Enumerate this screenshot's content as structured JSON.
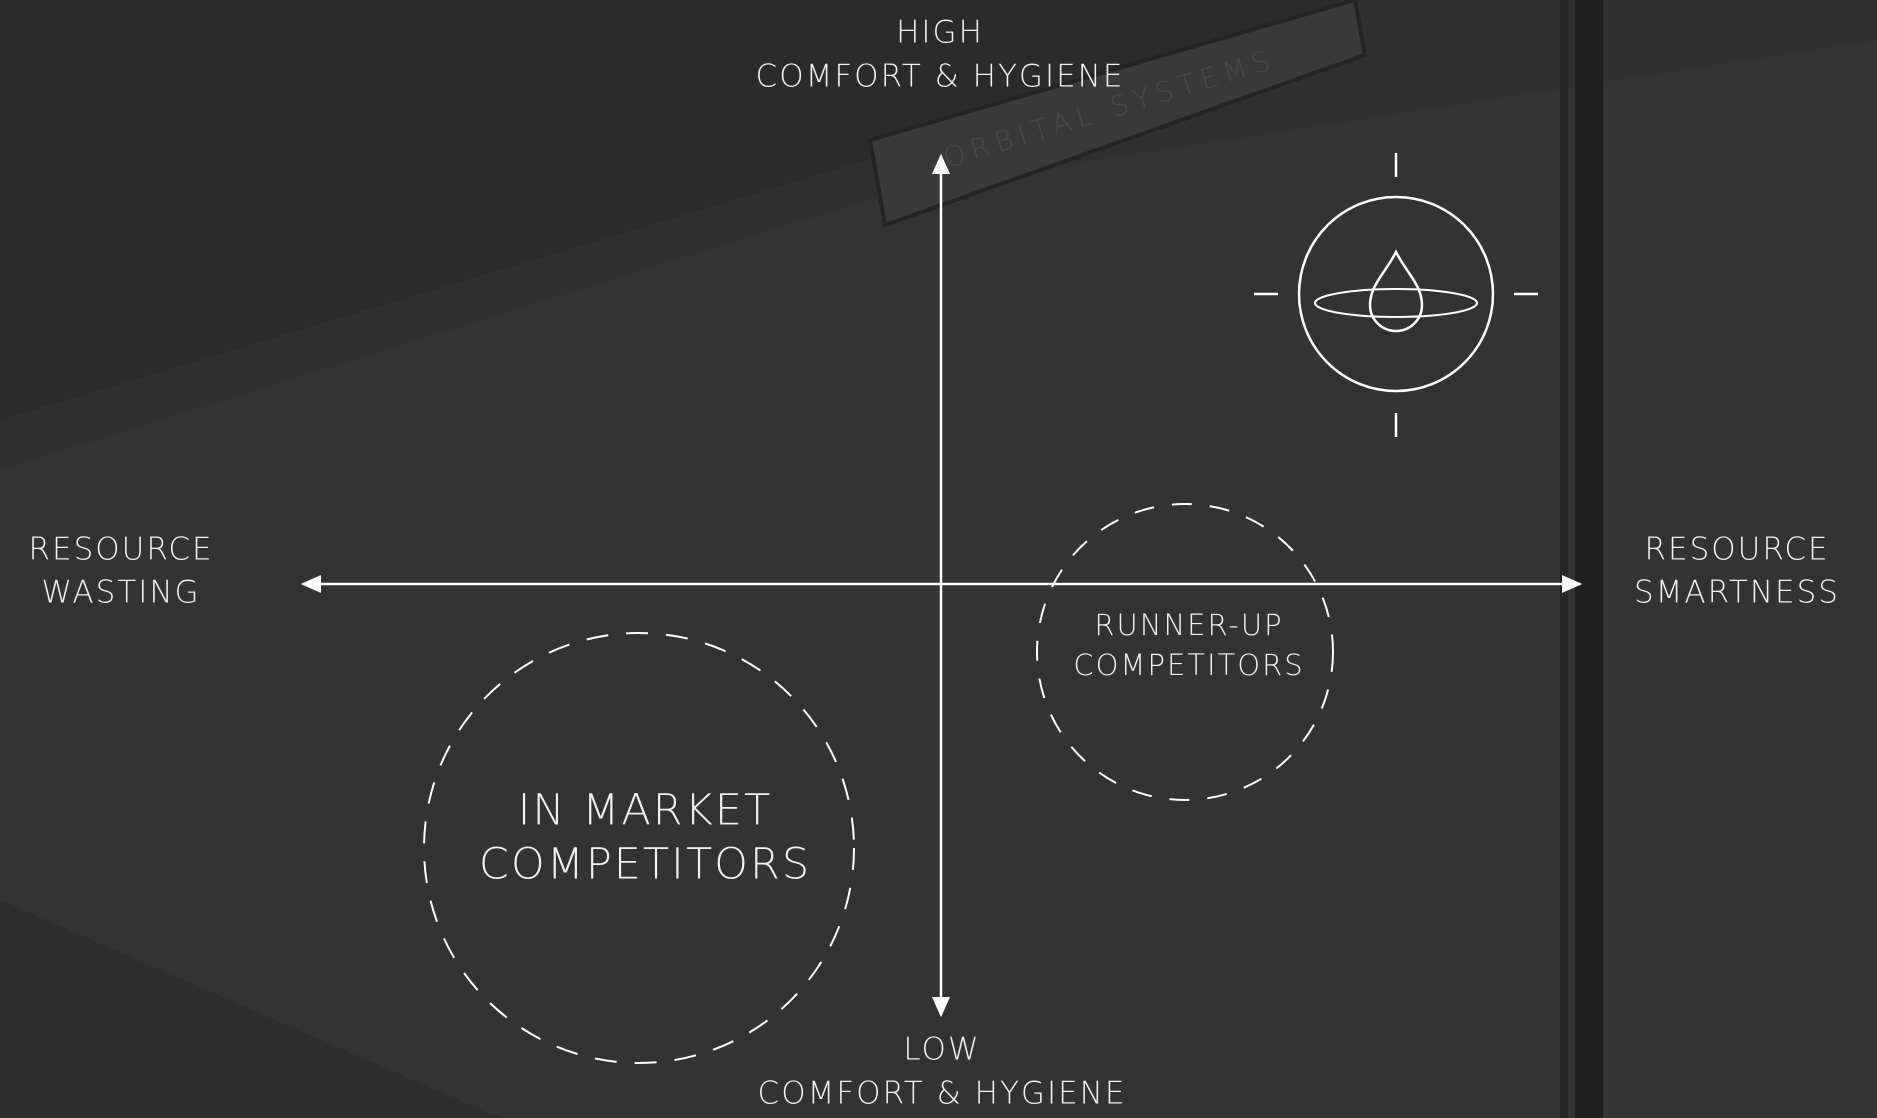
{
  "axes": {
    "top": [
      "HIGH",
      "COMFORT & HYGIENE"
    ],
    "bottom": [
      "LOW",
      "COMFORT & HYGIENE"
    ],
    "left": [
      "RESOURCE",
      "WASTING"
    ],
    "right": [
      "RESOURCE",
      "SMARTNESS"
    ]
  },
  "groups": [
    {
      "label": [
        "IN MARKET",
        "COMPETITORS"
      ]
    },
    {
      "label": [
        "RUNNER-UP",
        "COMPETITORS"
      ]
    }
  ],
  "background_sign": "ORBITAL SYSTEMS"
}
